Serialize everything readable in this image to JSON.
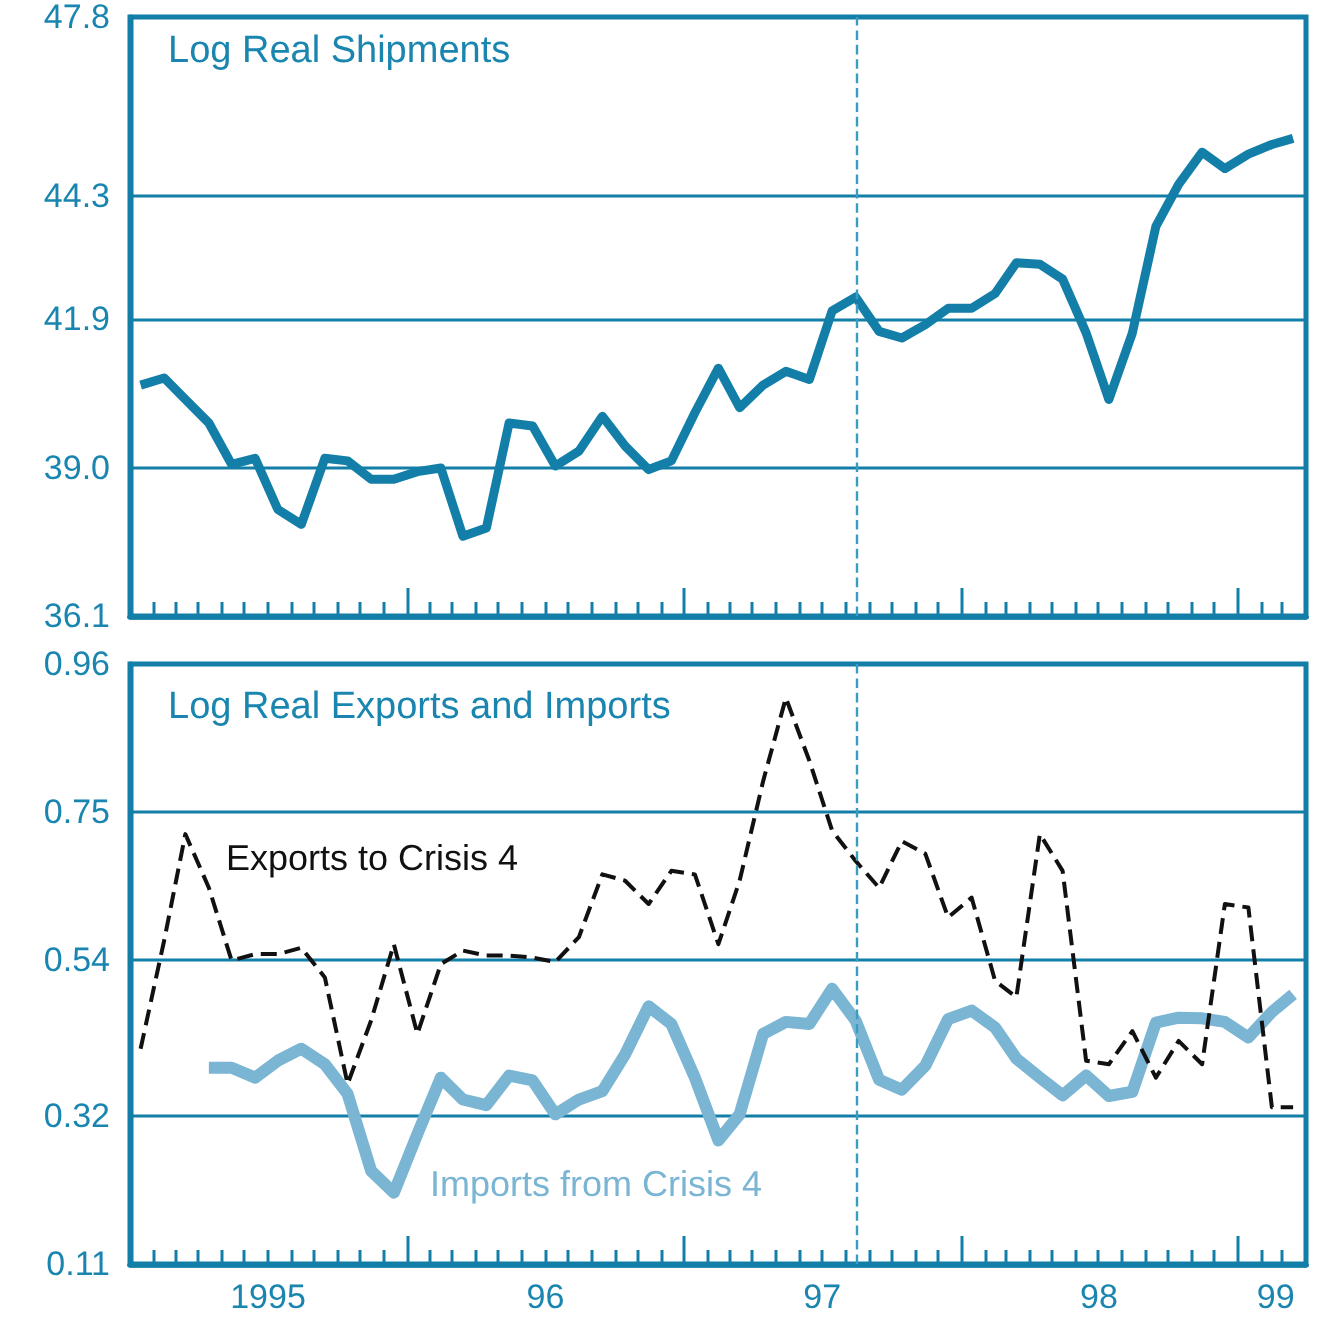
{
  "chart_data": [
    {
      "type": "line",
      "title": "Log Real Shipments",
      "marker": "none",
      "line_style": "solid",
      "grid": "y",
      "tick_labels": "y",
      "x": [
        "1995-01-15",
        "1995-02-15",
        "1995-03-15",
        "1995-04-15",
        "1995-05-15",
        "1995-06-15",
        "1995-07-15",
        "1995-08-15",
        "1995-09-15",
        "1995-10-15",
        "1995-11-15",
        "1995-12-15",
        "1996-01-15",
        "1996-02-15",
        "1996-03-15",
        "1996-04-15",
        "1996-05-15",
        "1996-06-15",
        "1996-07-15",
        "1996-08-15",
        "1996-09-15",
        "1996-10-15",
        "1996-11-15",
        "1996-12-15",
        "1997-01-15",
        "1997-02-15",
        "1997-03-15",
        "1997-04-15",
        "1997-05-15",
        "1997-06-15",
        "1997-07-15",
        "1997-08-15",
        "1997-09-15",
        "1997-10-15",
        "1997-11-15",
        "1997-12-15",
        "1998-01-15",
        "1998-02-15",
        "1998-03-15",
        "1998-04-15",
        "1998-05-15",
        "1998-06-15",
        "1998-07-15",
        "1998-08-15",
        "1998-09-15",
        "1998-10-15",
        "1998-11-15",
        "1998-12-15",
        "1999-01-15",
        "1999-02-15",
        "1999-03-15"
      ],
      "series": [
        {
          "color": "#137fa8",
          "values": [
            40.61,
            40.75,
            40.33,
            39.87,
            39.06,
            39.18,
            38.18,
            37.89,
            39.18,
            39.13,
            38.77,
            38.77,
            38.92,
            38.99,
            37.66,
            37.82,
            39.87,
            39.81,
            39.03,
            39.32,
            40.0,
            39.42,
            38.96,
            39.13,
            40.07,
            40.94,
            40.17,
            40.61,
            40.88,
            40.72,
            42.06,
            42.33,
            41.66,
            41.53,
            41.79,
            42.11,
            42.11,
            42.4,
            43.0,
            42.97,
            42.68,
            41.63,
            40.33,
            41.63,
            43.71,
            44.53,
            45.16,
            44.84,
            45.12,
            45.31,
            45.43
          ]
        }
      ],
      "xlim": [
        "1995-01-01",
        "1999-04-01"
      ],
      "xticks": [
        {
          "value": "1995-02-01",
          "label": null
        },
        {
          "value": "1995-03-01",
          "label": null
        },
        {
          "value": "1995-04-01",
          "label": null
        },
        {
          "value": "1995-05-01",
          "label": null
        },
        {
          "value": "1995-06-01",
          "label": null
        },
        {
          "value": "1995-07-01",
          "label": null
        },
        {
          "value": "1995-08-01",
          "label": null
        },
        {
          "value": "1995-09-01",
          "label": null
        },
        {
          "value": "1995-10-01",
          "label": null
        },
        {
          "value": "1995-11-01",
          "label": null
        },
        {
          "value": "1995-12-01",
          "label": null
        },
        {
          "value": "1996-01-01",
          "label": null
        },
        {
          "value": "1996-02-01",
          "label": null
        },
        {
          "value": "1996-03-01",
          "label": null
        },
        {
          "value": "1996-04-01",
          "label": null
        },
        {
          "value": "1996-05-01",
          "label": null
        },
        {
          "value": "1996-06-01",
          "label": null
        },
        {
          "value": "1996-07-01",
          "label": null
        },
        {
          "value": "1996-08-01",
          "label": null
        },
        {
          "value": "1996-09-01",
          "label": null
        },
        {
          "value": "1996-10-01",
          "label": null
        },
        {
          "value": "1996-11-01",
          "label": null
        },
        {
          "value": "1996-12-01",
          "label": null
        },
        {
          "value": "1997-01-01",
          "label": null
        },
        {
          "value": "1997-02-01",
          "label": null
        },
        {
          "value": "1997-03-01",
          "label": null
        },
        {
          "value": "1997-04-01",
          "label": null
        },
        {
          "value": "1997-05-01",
          "label": null
        },
        {
          "value": "1997-06-01",
          "label": null
        },
        {
          "value": "1997-07-01",
          "label": null
        },
        {
          "value": "1997-08-01",
          "label": null
        },
        {
          "value": "1997-09-01",
          "label": null
        },
        {
          "value": "1997-10-01",
          "label": null
        },
        {
          "value": "1997-11-01",
          "label": null
        },
        {
          "value": "1997-12-01",
          "label": null
        },
        {
          "value": "1998-01-01",
          "label": null
        },
        {
          "value": "1998-02-01",
          "label": null
        },
        {
          "value": "1998-03-01",
          "label": null
        },
        {
          "value": "1998-04-01",
          "label": null
        },
        {
          "value": "1998-05-01",
          "label": null
        },
        {
          "value": "1998-06-01",
          "label": null
        },
        {
          "value": "1998-07-01",
          "label": null
        },
        {
          "value": "1998-08-01",
          "label": null
        },
        {
          "value": "1998-09-01",
          "label": null
        },
        {
          "value": "1998-10-01",
          "label": null
        },
        {
          "value": "1998-11-01",
          "label": null
        },
        {
          "value": "1998-12-01",
          "label": null
        },
        {
          "value": "1999-01-01",
          "label": null
        },
        {
          "value": "1999-02-01",
          "label": null
        },
        {
          "value": "1999-03-01",
          "label": null
        }
      ],
      "ylim": [
        36.1,
        47.8
      ],
      "yticks": [
        36.1,
        {
          "value": 39.0,
          "label": "39.0"
        },
        41.9,
        44.3,
        47.8
      ],
      "ref_lines": [
        {
          "axis": "x",
          "value": "1997-08-15",
          "color": "#3a9cc0",
          "line_style": "dashed"
        }
      ]
    },
    {
      "type": "line",
      "title": "Log Real Exports and Imports",
      "marker": "none",
      "grid": "y",
      "x": [
        "1995-01-15",
        "1995-02-15",
        "1995-03-15",
        "1995-04-15",
        "1995-05-15",
        "1995-06-15",
        "1995-07-15",
        "1995-08-15",
        "1995-09-15",
        "1995-10-15",
        "1995-11-15",
        "1995-12-15",
        "1996-01-15",
        "1996-02-15",
        "1996-03-15",
        "1996-04-15",
        "1996-05-15",
        "1996-06-15",
        "1996-07-15",
        "1996-08-15",
        "1996-09-15",
        "1996-10-15",
        "1996-11-15",
        "1996-12-15",
        "1997-01-15",
        "1997-02-15",
        "1997-03-15",
        "1997-04-15",
        "1997-05-15",
        "1997-06-15",
        "1997-07-15",
        "1997-08-15",
        "1997-09-15",
        "1997-10-15",
        "1997-11-15",
        "1997-12-15",
        "1998-01-15",
        "1998-02-15",
        "1998-03-15",
        "1998-04-15",
        "1998-05-15",
        "1998-06-15",
        "1998-07-15",
        "1998-08-15",
        "1998-09-15",
        "1998-10-15",
        "1998-11-15",
        "1998-12-15",
        "1999-01-15",
        "1999-02-15",
        "1999-03-15"
      ],
      "series": [
        {
          "name": "Imports from Crisis 4",
          "color": "#7ab5d3",
          "line_style": "solid",
          "values": [
            null,
            null,
            null,
            0.388,
            0.388,
            0.374,
            0.398,
            0.415,
            0.393,
            0.351,
            0.242,
            0.211,
            0.294,
            0.374,
            0.343,
            0.335,
            0.377,
            0.37,
            0.322,
            0.343,
            0.355,
            0.407,
            0.475,
            0.45,
            0.374,
            0.285,
            0.322,
            0.436,
            0.453,
            0.45,
            0.5,
            0.455,
            0.371,
            0.357,
            0.391,
            0.457,
            0.469,
            0.445,
            0.401,
            0.374,
            0.349,
            0.377,
            0.348,
            0.354,
            0.452,
            0.459,
            0.458,
            0.453,
            0.431,
            0.467,
            0.492
          ]
        },
        {
          "name": "Exports to Crisis 4",
          "color": "#111111",
          "line_style": "dashed",
          "values": [
            0.415,
            0.568,
            0.719,
            0.643,
            0.54,
            0.549,
            0.549,
            0.558,
            0.516,
            0.365,
            0.455,
            0.563,
            0.436,
            0.535,
            0.554,
            0.547,
            0.547,
            0.544,
            0.538,
            0.573,
            0.662,
            0.653,
            0.62,
            0.667,
            0.662,
            0.563,
            0.653,
            0.794,
            0.912,
            0.823,
            0.724,
            0.681,
            0.643,
            0.709,
            0.691,
            0.601,
            0.629,
            0.511,
            0.488,
            0.719,
            0.667,
            0.398,
            0.393,
            0.44,
            0.374,
            0.426,
            0.393,
            0.62,
            0.615,
            0.332,
            0.332
          ]
        }
      ],
      "xlim": [
        "1995-01-01",
        "1999-04-01"
      ],
      "xticks": [
        {
          "value": "1995-02-01",
          "label": null
        },
        {
          "value": "1995-03-01",
          "label": null
        },
        {
          "value": "1995-04-01",
          "label": null
        },
        {
          "value": "1995-05-01",
          "label": null
        },
        {
          "value": "1995-06-01",
          "label": null
        },
        {
          "value": "1995-07-01",
          "label": null
        },
        {
          "value": "1995-08-01",
          "label": null
        },
        {
          "value": "1995-09-01",
          "label": null
        },
        {
          "value": "1995-10-01",
          "label": null
        },
        {
          "value": "1995-11-01",
          "label": null
        },
        {
          "value": "1995-12-01",
          "label": null
        },
        {
          "value": "1996-01-01",
          "label": null
        },
        {
          "value": "1996-02-01",
          "label": null
        },
        {
          "value": "1996-03-01",
          "label": null
        },
        {
          "value": "1996-04-01",
          "label": null
        },
        {
          "value": "1996-05-01",
          "label": null
        },
        {
          "value": "1996-06-01",
          "label": null
        },
        {
          "value": "1996-07-01",
          "label": null
        },
        {
          "value": "1996-08-01",
          "label": null
        },
        {
          "value": "1996-09-01",
          "label": null
        },
        {
          "value": "1996-10-01",
          "label": null
        },
        {
          "value": "1996-11-01",
          "label": null
        },
        {
          "value": "1996-12-01",
          "label": null
        },
        {
          "value": "1997-01-01",
          "label": null
        },
        {
          "value": "1997-02-01",
          "label": null
        },
        {
          "value": "1997-03-01",
          "label": null
        },
        {
          "value": "1997-04-01",
          "label": null
        },
        {
          "value": "1997-05-01",
          "label": null
        },
        {
          "value": "1997-06-01",
          "label": null
        },
        {
          "value": "1997-07-01",
          "label": null
        },
        {
          "value": "1997-08-01",
          "label": null
        },
        {
          "value": "1997-09-01",
          "label": null
        },
        {
          "value": "1997-10-01",
          "label": null
        },
        {
          "value": "1997-11-01",
          "label": null
        },
        {
          "value": "1997-12-01",
          "label": null
        },
        {
          "value": "1998-01-01",
          "label": null
        },
        {
          "value": "1998-02-01",
          "label": null
        },
        {
          "value": "1998-03-01",
          "label": null
        },
        {
          "value": "1998-04-01",
          "label": null
        },
        {
          "value": "1998-05-01",
          "label": null
        },
        {
          "value": "1998-06-01",
          "label": null
        },
        {
          "value": "1998-07-01",
          "label": null
        },
        {
          "value": "1998-08-01",
          "label": null
        },
        {
          "value": "1998-09-01",
          "label": null
        },
        {
          "value": "1998-10-01",
          "label": null
        },
        {
          "value": "1998-11-01",
          "label": null
        },
        {
          "value": "1998-12-01",
          "label": null
        },
        {
          "value": "1999-01-01",
          "label": null
        },
        {
          "value": "1999-02-01",
          "label": null
        },
        {
          "value": "1999-03-01",
          "label": null
        },
        {
          "value": "1995-07-02",
          "label": "1995"
        },
        {
          "value": "1996-07-02",
          "label": "96"
        },
        {
          "value": "1997-07-02",
          "label": "97"
        },
        {
          "value": "1998-07-02",
          "label": "98"
        },
        {
          "value": "1999-02-20",
          "label": "99"
        }
      ],
      "ylim": [
        0.11,
        0.96
      ],
      "yticks": [
        0.11,
        0.32,
        0.54,
        0.75,
        0.96
      ],
      "ref_lines": [
        {
          "axis": "x",
          "value": "1997-08-15",
          "color": "#3a9cc0",
          "line_style": "dashed"
        }
      ]
    }
  ]
}
